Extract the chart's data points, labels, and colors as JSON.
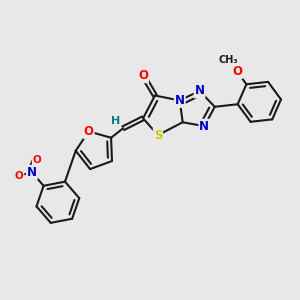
{
  "bg_color": "#e8e8e8",
  "bond_color": "#1a1a1a",
  "bond_width": 1.5,
  "atom_colors": {
    "O": "#ff0000",
    "N": "#0000cc",
    "S": "#cccc00",
    "H": "#008080",
    "C": "#1a1a1a"
  },
  "font_size": 8.5,
  "fig_size": [
    3.0,
    3.0
  ],
  "dpi": 100,
  "xlim": [
    0,
    300
  ],
  "ylim": [
    0,
    300
  ]
}
